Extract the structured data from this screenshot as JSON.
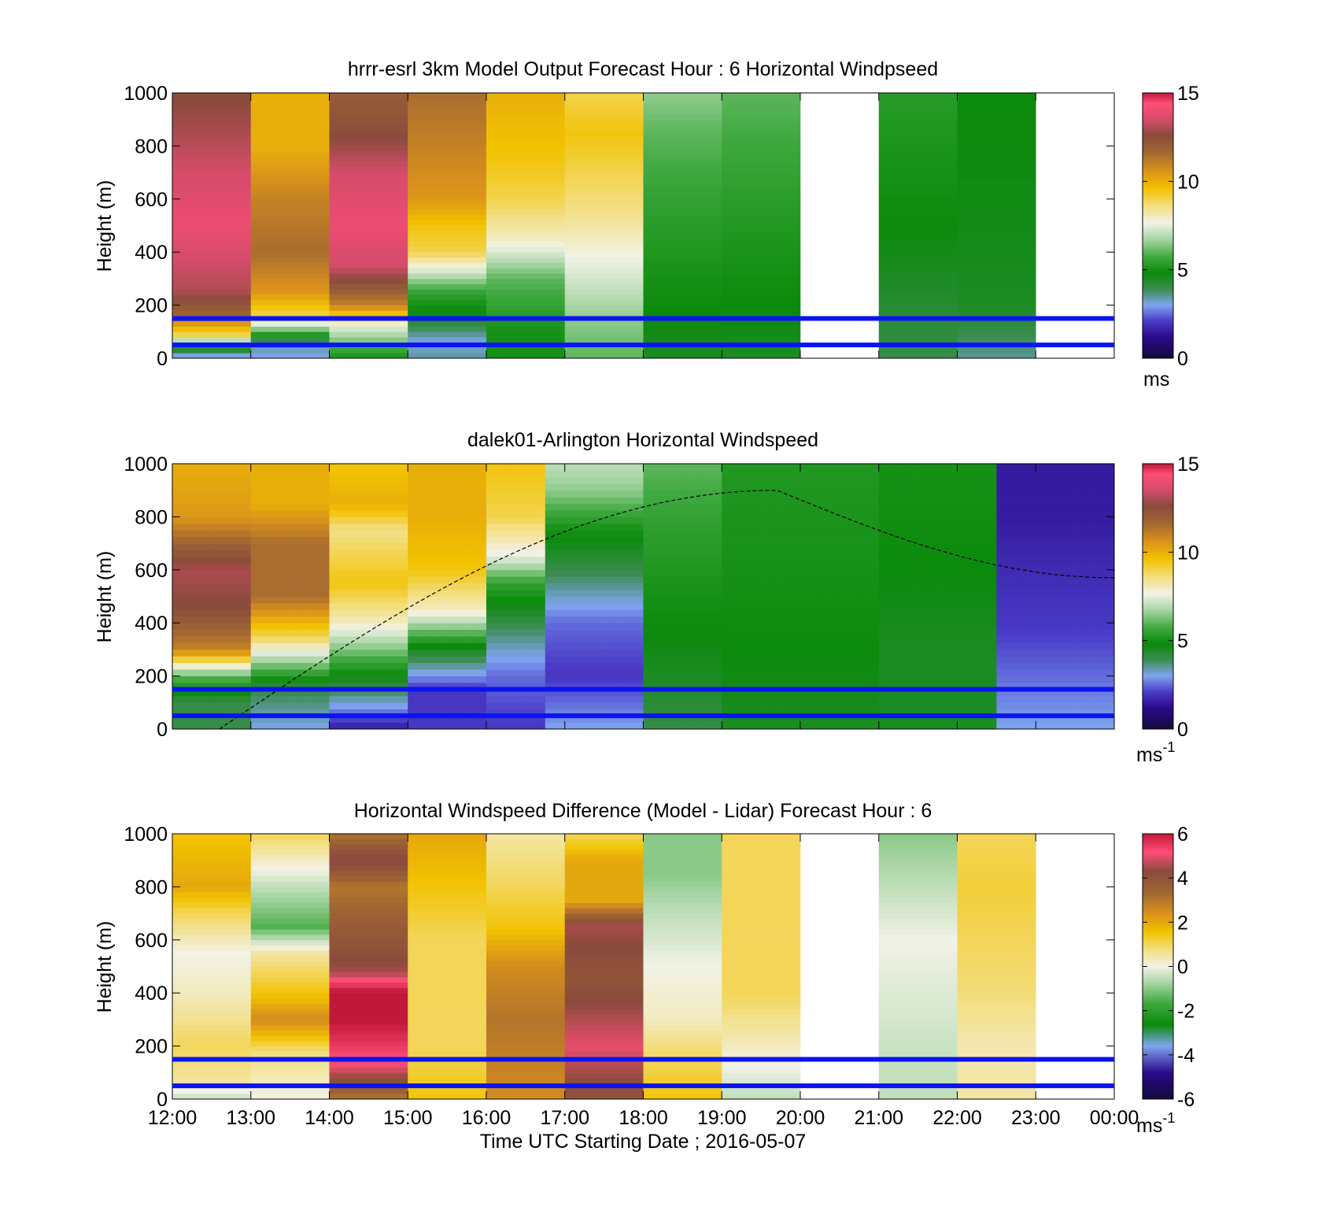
{
  "chart_data": [
    {
      "type": "heatmap",
      "title": "hrrr-esrl 3km Model Output   Forecast Hour : 6 Horizontal Windpseed",
      "xlabel": "",
      "ylabel": "Height (m)",
      "ylim": [
        0,
        1000
      ],
      "y_ticks": [
        "0",
        "200",
        "400",
        "600",
        "800",
        "1000"
      ],
      "colorbar": {
        "ticks": [
          "0",
          "5",
          "10",
          "15"
        ],
        "range": [
          0,
          15
        ],
        "unit": "ms",
        "unit_sup": ""
      },
      "reference_lines_m": [
        50,
        150
      ],
      "hour_columns": [
        {
          "hour": "12:00",
          "profile": [
            [
              0,
              2.5
            ],
            [
              25,
              4
            ],
            [
              60,
              6
            ],
            [
              90,
              9
            ],
            [
              120,
              10
            ],
            [
              150,
              11.5
            ],
            [
              250,
              13
            ],
            [
              500,
              14
            ],
            [
              700,
              13.5
            ],
            [
              1000,
              12.5
            ]
          ]
        },
        {
          "hour": "13:00",
          "profile": [
            [
              0,
              3
            ],
            [
              60,
              3.5
            ],
            [
              120,
              7
            ],
            [
              160,
              9
            ],
            [
              250,
              10.5
            ],
            [
              400,
              11.5
            ],
            [
              600,
              11
            ],
            [
              800,
              10
            ],
            [
              1000,
              10
            ]
          ]
        },
        {
          "hour": "14:00",
          "profile": [
            [
              0,
              5
            ],
            [
              50,
              6
            ],
            [
              120,
              7.5
            ],
            [
              200,
              11
            ],
            [
              350,
              13.5
            ],
            [
              500,
              14
            ],
            [
              700,
              13.5
            ],
            [
              850,
              12.5
            ],
            [
              1000,
              12
            ]
          ]
        },
        {
          "hour": "15:00",
          "profile": [
            [
              0,
              3.5
            ],
            [
              60,
              3
            ],
            [
              150,
              4.5
            ],
            [
              250,
              5.5
            ],
            [
              400,
              9
            ],
            [
              500,
              9.5
            ],
            [
              600,
              10.5
            ],
            [
              800,
              11
            ],
            [
              1000,
              11.5
            ]
          ]
        },
        {
          "hour": "16:00",
          "profile": [
            [
              0,
              5
            ],
            [
              100,
              5
            ],
            [
              300,
              6
            ],
            [
              450,
              8
            ],
            [
              600,
              9
            ],
            [
              750,
              9.5
            ],
            [
              1000,
              10
            ]
          ]
        },
        {
          "hour": "17:00",
          "profile": [
            [
              0,
              6
            ],
            [
              150,
              6.5
            ],
            [
              350,
              7.5
            ],
            [
              550,
              8.5
            ],
            [
              700,
              9
            ],
            [
              850,
              9.5
            ],
            [
              1000,
              9
            ]
          ]
        },
        {
          "hour": "18:00",
          "profile": [
            [
              0,
              4.5
            ],
            [
              300,
              5
            ],
            [
              600,
              5.5
            ],
            [
              850,
              6
            ],
            [
              1000,
              6.5
            ]
          ]
        },
        {
          "hour": "19:00",
          "profile": [
            [
              0,
              4.5
            ],
            [
              350,
              5
            ],
            [
              700,
              5.5
            ],
            [
              1000,
              6
            ]
          ]
        },
        {
          "hour": "20:00",
          "profile": []
        },
        {
          "hour": "21:00",
          "profile": [
            [
              0,
              4
            ],
            [
              500,
              4.8
            ],
            [
              1000,
              5.3
            ]
          ]
        },
        {
          "hour": "22:00",
          "profile": [
            [
              0,
              3.5
            ],
            [
              200,
              4.5
            ],
            [
              600,
              4.7
            ],
            [
              1000,
              4.8
            ]
          ]
        },
        {
          "hour": "23:00",
          "profile": []
        }
      ]
    },
    {
      "type": "heatmap",
      "title": "dalek01-Arlington  Horizontal Windspeed",
      "xlabel": "",
      "ylabel": "Height (m)",
      "ylim": [
        0,
        1000
      ],
      "y_ticks": [
        "0",
        "200",
        "400",
        "600",
        "800",
        "1000"
      ],
      "colorbar": {
        "ticks": [
          "0",
          "5",
          "10",
          "15"
        ],
        "range": [
          0,
          15
        ],
        "unit": "ms",
        "unit_sup": "-1"
      },
      "reference_lines_m": [
        50,
        150
      ],
      "boundary_layer_curve": {
        "start_time_h": 0.6,
        "peak_time_h": 7.7,
        "peak_height_m": 900,
        "end_height_m": 570
      },
      "time_step_minutes": 15,
      "column_profiles": [
        {
          "start_h": 0.0,
          "end_h": 1.0,
          "profile": [
            [
              0,
              4
            ],
            [
              100,
              4
            ],
            [
              200,
              6
            ],
            [
              300,
              11
            ],
            [
              450,
              12.5
            ],
            [
              600,
              13
            ],
            [
              800,
              10.5
            ],
            [
              1000,
              10
            ]
          ]
        },
        {
          "start_h": 1.0,
          "end_h": 2.0,
          "profile": [
            [
              0,
              3
            ],
            [
              150,
              4
            ],
            [
              250,
              6.5
            ],
            [
              350,
              9
            ],
            [
              500,
              11.5
            ],
            [
              700,
              11.5
            ],
            [
              850,
              10
            ],
            [
              1000,
              10
            ]
          ]
        },
        {
          "start_h": 2.0,
          "end_h": 3.0,
          "profile": [
            [
              0,
              1.5
            ],
            [
              120,
              3.5
            ],
            [
              250,
              5.5
            ],
            [
              400,
              8
            ],
            [
              550,
              9.5
            ],
            [
              750,
              8.5
            ],
            [
              850,
              10
            ],
            [
              1000,
              9.5
            ]
          ]
        },
        {
          "start_h": 3.0,
          "end_h": 4.0,
          "profile": [
            [
              0,
              2
            ],
            [
              150,
              2
            ],
            [
              300,
              4.5
            ],
            [
              450,
              8
            ],
            [
              600,
              9.5
            ],
            [
              800,
              10
            ],
            [
              1000,
              10
            ]
          ]
        },
        {
          "start_h": 4.0,
          "end_h": 4.7,
          "profile": [
            [
              0,
              2
            ],
            [
              200,
              2.5
            ],
            [
              400,
              4
            ],
            [
              550,
              5.5
            ],
            [
              650,
              7.5
            ],
            [
              800,
              9
            ],
            [
              1000,
              9.5
            ]
          ]
        },
        {
          "start_h": 4.7,
          "end_h": 6.0,
          "profile": [
            [
              0,
              3
            ],
            [
              200,
              2
            ],
            [
              400,
              2.5
            ],
            [
              600,
              4
            ],
            [
              750,
              5
            ],
            [
              900,
              6.5
            ],
            [
              1000,
              7
            ]
          ]
        },
        {
          "start_h": 6.0,
          "end_h": 7.0,
          "profile": [
            [
              0,
              4
            ],
            [
              200,
              4.5
            ],
            [
              500,
              5
            ],
            [
              800,
              5.5
            ],
            [
              1000,
              6
            ]
          ]
        },
        {
          "start_h": 7.0,
          "end_h": 9.0,
          "profile": [
            [
              0,
              4.5
            ],
            [
              300,
              4.8
            ],
            [
              600,
              5
            ],
            [
              1000,
              5.2
            ]
          ]
        },
        {
          "start_h": 9.0,
          "end_h": 10.5,
          "profile": [
            [
              0,
              4.5
            ],
            [
              300,
              4.5
            ],
            [
              600,
              4.8
            ],
            [
              1000,
              5
            ]
          ]
        },
        {
          "start_h": 10.5,
          "end_h": 12.0,
          "profile": [
            [
              0,
              3
            ],
            [
              200,
              2.5
            ],
            [
              400,
              2
            ],
            [
              600,
              1.8
            ],
            [
              800,
              1.5
            ],
            [
              1000,
              1.5
            ]
          ]
        }
      ]
    },
    {
      "type": "heatmap",
      "title": "Horizontal Windspeed Difference (Model - Lidar) Forecast Hour : 6",
      "xlabel": "Time UTC  Starting Date ; 2016-05-07",
      "ylabel": "Height (m)",
      "ylim": [
        0,
        1000
      ],
      "y_ticks": [
        "0",
        "200",
        "400",
        "600",
        "800",
        "1000"
      ],
      "x_ticks": [
        "12:00",
        "13:00",
        "14:00",
        "15:00",
        "16:00",
        "17:00",
        "18:00",
        "19:00",
        "20:00",
        "21:00",
        "22:00",
        "23:00",
        "00:00"
      ],
      "colorbar": {
        "ticks": [
          "-6",
          "-4",
          "-2",
          "0",
          "2",
          "4",
          "6"
        ],
        "range": [
          -6,
          6
        ],
        "unit": "ms",
        "unit_sup": "-1"
      },
      "reference_lines_m": [
        50,
        150
      ],
      "hour_columns": [
        {
          "hour": "12:00",
          "profile": [
            [
              0,
              -0.5
            ],
            [
              60,
              0.5
            ],
            [
              200,
              1
            ],
            [
              400,
              0.3
            ],
            [
              550,
              0
            ],
            [
              700,
              1
            ],
            [
              800,
              2
            ],
            [
              1000,
              1.5
            ]
          ]
        },
        {
          "hour": "13:00",
          "profile": [
            [
              0,
              0
            ],
            [
              180,
              0.8
            ],
            [
              300,
              2.5
            ],
            [
              400,
              1.5
            ],
            [
              550,
              0.5
            ],
            [
              650,
              -1.5
            ],
            [
              800,
              -0.5
            ],
            [
              1000,
              1
            ]
          ]
        },
        {
          "hour": "14:00",
          "profile": [
            [
              0,
              3
            ],
            [
              120,
              5
            ],
            [
              380,
              6.5
            ],
            [
              480,
              4.5
            ],
            [
              800,
              3
            ],
            [
              900,
              4.5
            ],
            [
              1000,
              3
            ]
          ]
        },
        {
          "hour": "15:00",
          "profile": [
            [
              0,
              1.5
            ],
            [
              200,
              1
            ],
            [
              400,
              1
            ],
            [
              600,
              1
            ],
            [
              800,
              1.5
            ],
            [
              1000,
              2
            ]
          ]
        },
        {
          "hour": "16:00",
          "profile": [
            [
              0,
              2.5
            ],
            [
              300,
              3
            ],
            [
              500,
              2.5
            ],
            [
              650,
              1.5
            ],
            [
              800,
              1
            ],
            [
              1000,
              0.5
            ]
          ]
        },
        {
          "hour": "17:00",
          "profile": [
            [
              0,
              4
            ],
            [
              200,
              5
            ],
            [
              450,
              4
            ],
            [
              650,
              4.5
            ],
            [
              750,
              2
            ],
            [
              900,
              2
            ],
            [
              1000,
              1
            ]
          ]
        },
        {
          "hour": "18:00",
          "profile": [
            [
              0,
              1.5
            ],
            [
              150,
              1
            ],
            [
              300,
              0.3
            ],
            [
              500,
              0
            ],
            [
              700,
              -0.5
            ],
            [
              850,
              -1
            ],
            [
              1000,
              -1
            ]
          ]
        },
        {
          "hour": "19:00",
          "profile": [
            [
              0,
              -0.5
            ],
            [
              200,
              0.3
            ],
            [
              400,
              1
            ],
            [
              700,
              1
            ],
            [
              1000,
              1
            ]
          ]
        },
        {
          "hour": "20:00",
          "profile": []
        },
        {
          "hour": "21:00",
          "profile": [
            [
              0,
              -0.5
            ],
            [
              200,
              -0.4
            ],
            [
              400,
              -0.2
            ],
            [
              600,
              0
            ],
            [
              800,
              -0.5
            ],
            [
              1000,
              -1
            ]
          ]
        },
        {
          "hour": "22:00",
          "profile": [
            [
              0,
              0.5
            ],
            [
              200,
              0.4
            ],
            [
              400,
              0.8
            ],
            [
              600,
              1
            ],
            [
              800,
              1.2
            ],
            [
              1000,
              1
            ]
          ]
        },
        {
          "hour": "23:00",
          "profile": []
        }
      ]
    }
  ]
}
